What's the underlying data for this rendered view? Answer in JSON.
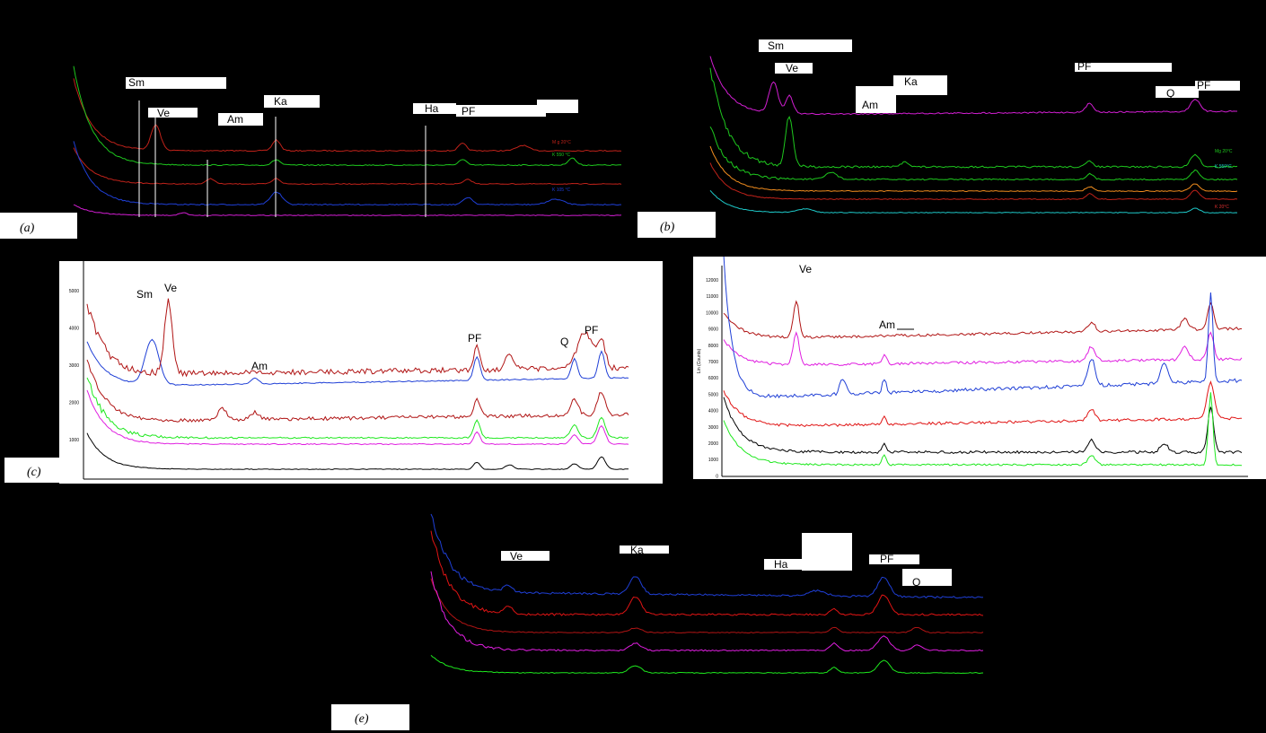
{
  "chart_data": [
    {
      "type": "line",
      "panel_label": "(a)",
      "background": "#000000",
      "mineral_labels": [
        "Sm",
        "Ve",
        "Am",
        "Ka",
        "Ha",
        "PF"
      ],
      "series": [
        {
          "label": "M g 20°C",
          "color": "#c0221a",
          "y": [
            160,
            154,
            152,
            151,
            151,
            150,
            150,
            151,
            151,
            151,
            151,
            150,
            150,
            151,
            150,
            150,
            151,
            151,
            152,
            152,
            151,
            151,
            150,
            150,
            151,
            150,
            150,
            150,
            150,
            150,
            151,
            151,
            150,
            151,
            150,
            150,
            151,
            150,
            151,
            151,
            151,
            150,
            151,
            151,
            151,
            150,
            150,
            150,
            151,
            151,
            151,
            150,
            151,
            150,
            150,
            151,
            150,
            151,
            151,
            151
          ]
        },
        {
          "label": "K 550 °C",
          "color": "#1ec81e",
          "y": [
            180,
            174,
            172,
            171,
            171,
            170,
            170,
            171,
            171,
            171,
            171,
            170,
            170,
            171,
            170,
            170,
            171,
            171,
            172,
            172,
            171,
            171,
            170,
            170,
            171,
            170,
            170,
            170,
            170,
            170,
            171,
            171,
            170,
            171,
            170,
            170,
            171,
            170,
            171,
            171,
            171,
            170,
            171,
            171,
            171,
            170,
            170,
            170,
            171,
            171,
            171,
            170,
            171,
            170,
            170,
            171,
            170,
            171,
            171,
            171
          ]
        },
        {
          "label": "",
          "color": "#c0221a",
          "y": [
            200,
            194,
            192,
            191,
            191,
            190,
            190,
            191,
            191,
            191,
            191,
            190,
            190,
            191,
            190,
            190,
            191,
            191,
            192,
            192,
            191,
            191,
            190,
            190,
            191,
            190,
            190,
            190,
            190,
            190,
            191,
            191,
            190,
            191,
            190,
            190,
            191,
            190,
            191,
            191,
            191,
            190,
            191,
            191,
            191,
            190,
            190,
            190,
            191,
            191,
            191,
            190,
            191,
            190,
            190,
            191,
            190,
            191,
            191,
            191
          ]
        },
        {
          "label": "K 105 °C",
          "color": "#1f3fd6",
          "y": [
            218,
            212,
            210,
            209,
            209,
            208,
            208,
            209,
            209,
            209,
            209,
            208,
            208,
            209,
            208,
            208,
            209,
            209,
            210,
            210,
            209,
            209,
            208,
            208,
            209,
            208,
            208,
            208,
            208,
            208,
            209,
            209,
            208,
            209,
            208,
            208,
            209,
            208,
            209,
            209,
            209,
            208,
            209,
            209,
            209,
            208,
            208,
            208,
            209,
            209,
            209,
            208,
            209,
            208,
            208,
            209,
            208,
            209,
            209,
            209
          ]
        },
        {
          "label": "",
          "color": "#d21ed2",
          "y": [
            230,
            226,
            225,
            224,
            224,
            224,
            224,
            224,
            224,
            224,
            224,
            224,
            224,
            224,
            224,
            224,
            224,
            224,
            225,
            225,
            224,
            224,
            224,
            224,
            224,
            224,
            224,
            224,
            224,
            224,
            224,
            224,
            224,
            224,
            224,
            224,
            224,
            224,
            224,
            224,
            224,
            224,
            224,
            224,
            224,
            224,
            224,
            224,
            224,
            224,
            224,
            224,
            224,
            224,
            224,
            224,
            224,
            224,
            224,
            224
          ]
        }
      ]
    },
    {
      "type": "line",
      "panel_label": "(b)",
      "background": "#000000",
      "mineral_labels": [
        "Sm",
        "Ve",
        "Am",
        "Ka",
        "PF",
        "Q",
        "PF"
      ],
      "series": [
        {
          "label": "",
          "color": "#d21ed2",
          "y": [
            0,
            0
          ]
        },
        {
          "label": "Mg 20°C",
          "color": "#1ec81e",
          "y": [
            0,
            0
          ]
        },
        {
          "label": "K 550°C",
          "color": "#1ec81e",
          "y": [
            0,
            0
          ]
        },
        {
          "label": "",
          "color": "#f08c1e",
          "y": [
            0,
            0
          ]
        },
        {
          "label": "",
          "color": "#c0221a",
          "y": [
            0,
            0
          ]
        },
        {
          "label": "K 20°C",
          "color": "#1ec8c8",
          "y": [
            0,
            0
          ]
        }
      ]
    },
    {
      "type": "line",
      "panel_label": "(c)",
      "background": "#ffffff",
      "mineral_labels": [
        "Sm",
        "Ve",
        "Am",
        "PF",
        "Q",
        "PF"
      ],
      "yticks": [
        "5000",
        "4000",
        "3000",
        "2000",
        "1000",
        "0"
      ],
      "series": [
        {
          "label": "",
          "color": "#1f3fd6",
          "y": [
            0,
            0
          ]
        },
        {
          "label": "",
          "color": "#b01414",
          "y": [
            0,
            0
          ]
        },
        {
          "label": "",
          "color": "#b01414",
          "y": [
            0,
            0
          ]
        },
        {
          "label": "",
          "color": "#1ee81e",
          "y": [
            0,
            0
          ]
        },
        {
          "label": "",
          "color": "#e01ee0",
          "y": [
            0,
            0
          ]
        },
        {
          "label": "",
          "color": "#000000",
          "y": [
            0,
            0
          ]
        }
      ]
    },
    {
      "type": "line",
      "panel_label": "(d)",
      "background": "#ffffff",
      "ylabel": "Lin (Counts)",
      "mineral_labels": [
        "Ve",
        "Am"
      ],
      "yticks": [
        "12000",
        "11000",
        "10000",
        "9000",
        "8000",
        "7000",
        "6000",
        "5000",
        "4000",
        "3000",
        "2000",
        "1000",
        "0"
      ],
      "series": [
        {
          "label": "",
          "color": "#b01414",
          "y": [
            0,
            0
          ]
        },
        {
          "label": "",
          "color": "#e01ee0",
          "y": [
            0,
            0
          ]
        },
        {
          "label": "",
          "color": "#1f3fd6",
          "y": [
            0,
            0
          ]
        },
        {
          "label": "",
          "color": "#e01414",
          "y": [
            0,
            0
          ]
        },
        {
          "label": "",
          "color": "#000000",
          "y": [
            0,
            0
          ]
        },
        {
          "label": "",
          "color": "#1ee81e",
          "y": [
            0,
            0
          ]
        }
      ]
    },
    {
      "type": "line",
      "panel_label": "(e)",
      "background": "#000000",
      "mineral_labels": [
        "Ve",
        "Ka",
        "Ha",
        "PF",
        "PF",
        "Q"
      ],
      "series": [
        {
          "label": "",
          "color": "#1f3fd6",
          "y": [
            0,
            0
          ]
        },
        {
          "label": "",
          "color": "#e01414",
          "y": [
            0,
            0
          ]
        },
        {
          "label": "",
          "color": "#b01414",
          "y": [
            0,
            0
          ]
        },
        {
          "label": "",
          "color": "#e01ee0",
          "y": [
            0,
            0
          ]
        },
        {
          "label": "",
          "color": "#1ee81e",
          "y": [
            0,
            0
          ]
        }
      ]
    }
  ]
}
